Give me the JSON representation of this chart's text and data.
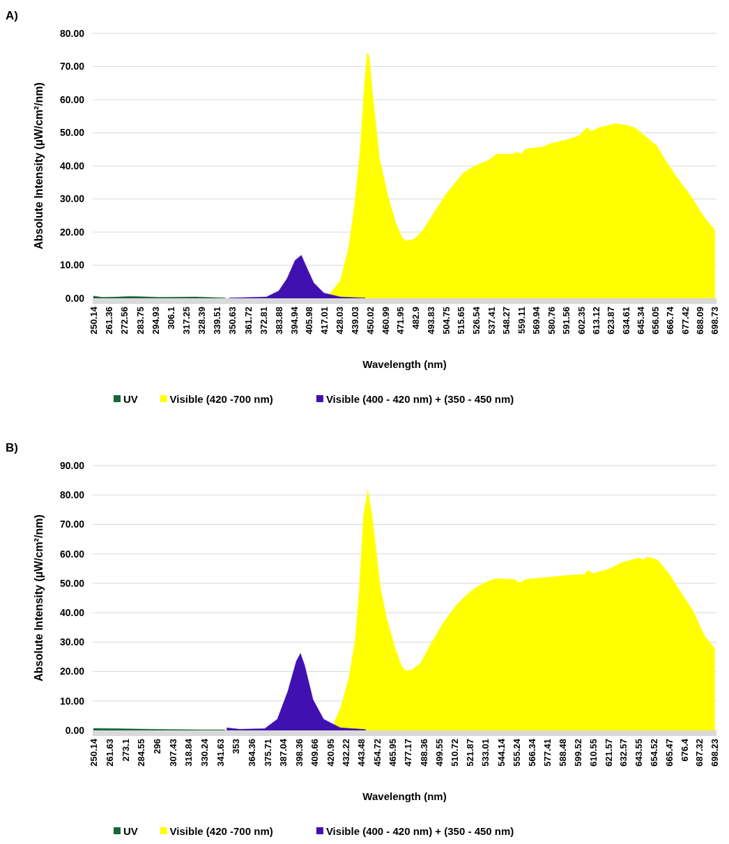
{
  "chart_data": [
    {
      "type": "area",
      "title": "A)",
      "xlabel": "Wavelength (nm)",
      "ylabel": "Absolute Intensity (µW/cm²/nm)",
      "xlim": [
        249.5,
        700
      ],
      "ylim": [
        0,
        80
      ],
      "xticks": [
        250.14,
        261.36,
        272.56,
        283.75,
        294.93,
        306.1,
        317.25,
        328.39,
        339.51,
        350.63,
        361.72,
        372.81,
        383.88,
        394.94,
        405.98,
        417.01,
        428.03,
        439.03,
        450.02,
        460.99,
        471.95,
        482.9,
        493.83,
        504.75,
        515.65,
        526.54,
        537.41,
        548.27,
        559.11,
        569.94,
        580.76,
        591.56,
        602.35,
        613.12,
        623.87,
        634.61,
        645.34,
        656.05,
        666.74,
        677.42,
        688.09,
        698.73
      ],
      "yticks": [
        {
          "value": 0,
          "label": "0.00"
        },
        {
          "value": 10,
          "label": "10.00"
        },
        {
          "value": 20,
          "label": "20.00"
        },
        {
          "value": 30,
          "label": "30.00"
        },
        {
          "value": 40,
          "label": "40.00"
        },
        {
          "value": 50,
          "label": "50.00"
        },
        {
          "value": 60,
          "label": "60.00"
        },
        {
          "value": 70,
          "label": "70.00"
        },
        {
          "value": 80,
          "label": "80.00"
        }
      ],
      "grid": "y",
      "legend": "bottom",
      "series": [
        {
          "name": "UV",
          "color": "#17663a",
          "x": [
            250.1,
            256,
            268,
            276.9,
            297.7,
            324.4,
            345.2
          ],
          "values": [
            0.7,
            0.3,
            0.4,
            0.6,
            0.3,
            0.4,
            0.1
          ]
        },
        {
          "name": "Visible (420 -700 nm)",
          "color": "#ffff00",
          "x": [
            418,
            428.4,
            434.3,
            438.8,
            442.7,
            445.3,
            447.7,
            449.2,
            452.2,
            456.6,
            462.6,
            468.5,
            473,
            476,
            481.9,
            487.8,
            496.7,
            504.2,
            510.1,
            517.5,
            525,
            535.3,
            541.3,
            553.2,
            556.1,
            559.1,
            562.1,
            574,
            579.9,
            591.8,
            600.7,
            606.6,
            609.6,
            615.5,
            627.4,
            636.3,
            642.3,
            648.2,
            657.1,
            663.1,
            672,
            681,
            691.3,
            698.8
          ],
          "values": [
            0,
            5.3,
            15.2,
            28.8,
            44.8,
            62,
            74.2,
            73.2,
            59.6,
            42.3,
            31.2,
            22.6,
            18.3,
            17.3,
            17.9,
            20.5,
            26.3,
            31.2,
            34.3,
            38,
            39.9,
            41.7,
            43.6,
            43.6,
            44.2,
            43.6,
            45.1,
            45.7,
            46.7,
            47.9,
            49.1,
            51.6,
            50.4,
            51.6,
            52.8,
            52.2,
            51.2,
            49.1,
            46,
            41.7,
            36.2,
            31.2,
            24.4,
            20.7
          ]
        },
        {
          "name": "Visible (400 - 420 nm) + (350 - 450 nm)",
          "color": "#4010b0",
          "x": [
            348.2,
            375,
            383.8,
            389.8,
            395.7,
            400.2,
            403.1,
            409.1,
            416.5,
            428.4,
            446.2
          ],
          "values": [
            0.1,
            0.4,
            2.2,
            5.9,
            11.5,
            13,
            10.2,
            4.7,
            1.6,
            0.4,
            0.1
          ]
        }
      ]
    },
    {
      "type": "area",
      "title": "B)",
      "xlabel": "Wavelength (nm)",
      "ylabel": "Absolute Intensity (µW/cm²/nm)",
      "xlim": [
        249.5,
        699.5
      ],
      "ylim": [
        0,
        90
      ],
      "xticks": [
        250.14,
        261.63,
        273.1,
        284.55,
        296,
        307.43,
        318.84,
        330.24,
        341.63,
        353,
        364.36,
        375.71,
        387.04,
        398.36,
        409.66,
        420.95,
        432.22,
        443.48,
        454.72,
        465.95,
        477.17,
        488.36,
        499.55,
        510.72,
        521.87,
        533.01,
        544.14,
        555.24,
        566.34,
        577.41,
        588.48,
        599.52,
        610.55,
        621.57,
        632.57,
        643.55,
        654.52,
        665.47,
        676.4,
        687.32,
        698.23
      ],
      "yticks": [
        {
          "value": 0,
          "label": "0.00"
        },
        {
          "value": 10,
          "label": "10.00"
        },
        {
          "value": 20,
          "label": "20.00"
        },
        {
          "value": 30,
          "label": "30.00"
        },
        {
          "value": 40,
          "label": "40.00"
        },
        {
          "value": 50,
          "label": "50.00"
        },
        {
          "value": 60,
          "label": "60.00"
        },
        {
          "value": 70,
          "label": "70.00"
        },
        {
          "value": 80,
          "label": "80.00"
        },
        {
          "value": 90,
          "label": "90.00"
        }
      ],
      "grid": "y",
      "legend": "bottom",
      "series": [
        {
          "name": "UV",
          "color": "#17663a",
          "x": [
            250.1,
            267.4,
            288.7,
            306.9,
            328.1,
            344.8
          ],
          "values": [
            0.7,
            0.6,
            0.4,
            0.3,
            0.2,
            0.2
          ]
        },
        {
          "name": "Visible (420 -700 nm)",
          "color": "#ffff00",
          "x": [
            424,
            428.2,
            434.3,
            438.9,
            441.9,
            444.9,
            448,
            451,
            457.1,
            461.6,
            467.7,
            472.2,
            475.3,
            479.8,
            485.9,
            493.5,
            502.6,
            511.7,
            517.8,
            525.3,
            534.4,
            540.5,
            554.1,
            557.2,
            561.7,
            576.9,
            592,
            604.2,
            607.2,
            610.2,
            622.3,
            631.4,
            643.6,
            646.6,
            649.6,
            657.2,
            664.8,
            673.9,
            683,
            690.6,
            698.2
          ],
          "values": [
            3,
            7.5,
            17.7,
            30.8,
            48.4,
            73.2,
            81.7,
            73.2,
            48.4,
            38.1,
            27.9,
            22.1,
            20.2,
            20.6,
            22.8,
            29.4,
            36.7,
            42.5,
            45.4,
            48.4,
            50.6,
            51.6,
            51.3,
            50.1,
            51.3,
            52,
            52.7,
            53,
            54.5,
            53.3,
            54.9,
            57.1,
            58.6,
            57.9,
            58.9,
            57.9,
            53.5,
            46.9,
            40.3,
            32.3,
            27.9
          ]
        },
        {
          "name": "Visible (400 - 420 nm) + (350 - 450 nm)",
          "color": "#4010b0",
          "x": [
            346.3,
            355.4,
            373.6,
            382.7,
            390.3,
            396.4,
            399.4,
            402.4,
            408.5,
            416.1,
            428.2,
            446.4
          ],
          "values": [
            0.9,
            0.4,
            0.6,
            3.8,
            13.3,
            23.5,
            26.2,
            22.1,
            10.4,
            3.8,
            0.9,
            0.3
          ]
        }
      ]
    }
  ]
}
